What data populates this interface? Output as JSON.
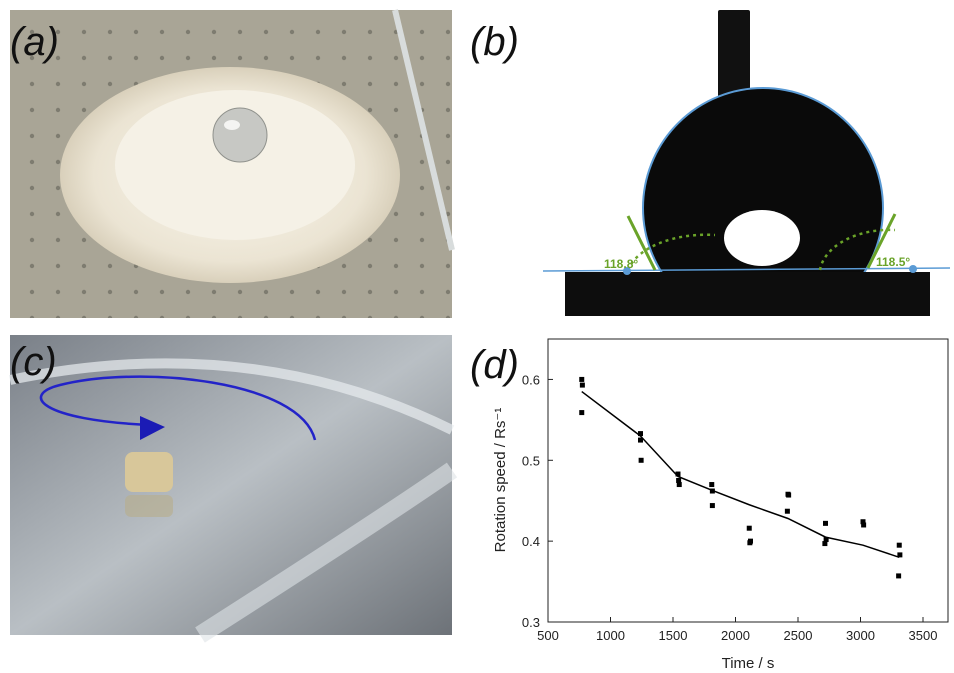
{
  "panels": [
    {
      "label": "(a)"
    },
    {
      "label": "(b)",
      "angles": [
        "118.8°",
        "118.5°"
      ]
    },
    {
      "label": "(c)"
    },
    {
      "label": "(d)"
    }
  ],
  "chart_data": {
    "type": "scatter",
    "x_label": "Time / s",
    "y_label": "Rotation speed / Rs⁻¹",
    "points": {
      "x": [
        770,
        775,
        770,
        1240,
        1240,
        1245,
        1540,
        1545,
        1550,
        1810,
        1815,
        1815,
        2110,
        2120,
        2115,
        2420,
        2425,
        2415,
        2720,
        2725,
        2715,
        3020,
        3025,
        3310,
        3315,
        3305
      ],
      "y": [
        0.6,
        0.593,
        0.559,
        0.533,
        0.525,
        0.5,
        0.483,
        0.475,
        0.47,
        0.47,
        0.462,
        0.444,
        0.416,
        0.4,
        0.398,
        0.458,
        0.457,
        0.437,
        0.422,
        0.402,
        0.397,
        0.424,
        0.42,
        0.395,
        0.383,
        0.357
      ],
      "color": "#000000"
    },
    "fit": {
      "x": [
        770,
        1240,
        1540,
        1810,
        2110,
        2420,
        2720,
        3020,
        3310
      ],
      "y": [
        0.585,
        0.53,
        0.48,
        0.463,
        0.445,
        0.428,
        0.405,
        0.395,
        0.38
      ],
      "color": "#000000"
    },
    "xlim": [
      500,
      3700
    ],
    "xticks": [
      500,
      1000,
      1500,
      2000,
      2500,
      3000,
      3500
    ],
    "ylim": [
      0.3,
      0.65
    ],
    "yticks": [
      0.3,
      0.4,
      0.5,
      0.6
    ]
  }
}
